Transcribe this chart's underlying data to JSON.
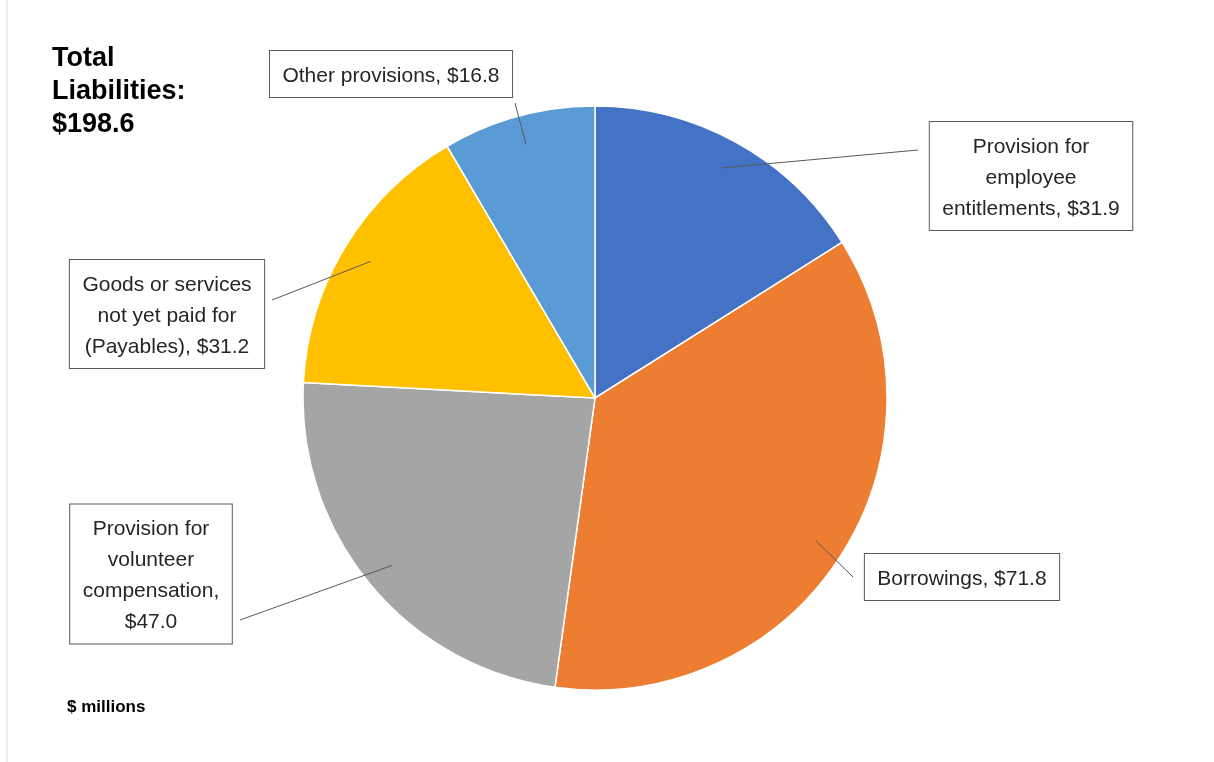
{
  "chart_data": {
    "type": "pie",
    "title": "Total Liabilities: $198.6",
    "categories": [
      "Provision for employee entitlements, $31.9",
      "Borrowings, $71.8",
      "Provision for volunteer compensation, $47.0",
      "Goods or services not yet paid for (Payables), $31.2",
      "Other provisions, $16.8"
    ],
    "values": [
      31.9,
      71.8,
      47.0,
      31.2,
      16.8
    ],
    "colors": [
      "#4472c4",
      "#ed7d31",
      "#a5a5a5",
      "#ffc000",
      "#5b9bd5"
    ],
    "annotations": [
      "$ millions"
    ]
  }
}
